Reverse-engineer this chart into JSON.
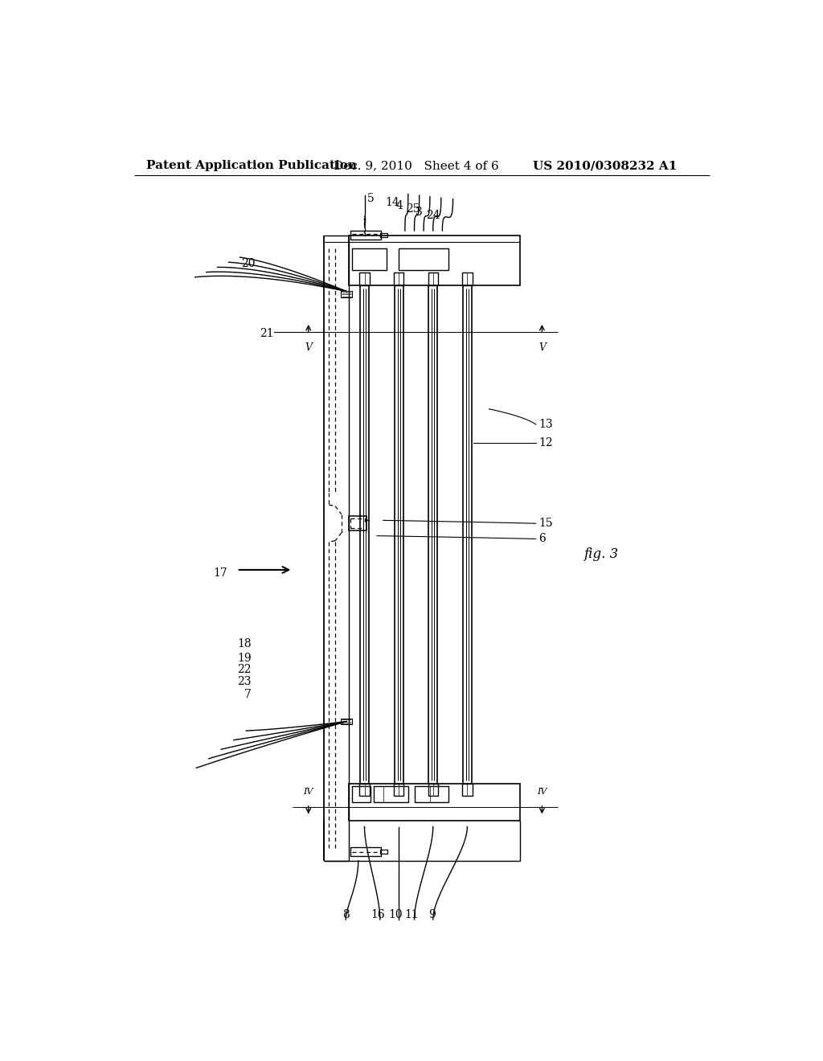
{
  "bg_color": "#ffffff",
  "header_left": "Patent Application Publication",
  "header_mid": "Dec. 9, 2010   Sheet 4 of 6",
  "header_right": "US 2010/0308232 A1",
  "fig_label": "fig. 3",
  "line_color": "#000000",
  "lw_main": 1.4,
  "lw_thin": 0.9,
  "lw_xtra": 0.7,
  "font_ref": 10,
  "font_header": 11
}
